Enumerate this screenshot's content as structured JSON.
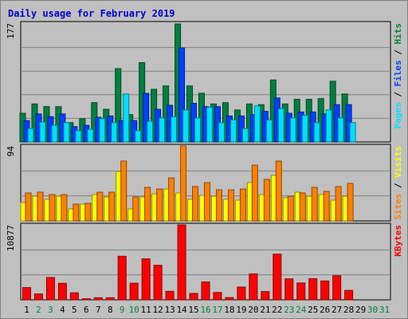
{
  "title": "Daily usage for February 2019",
  "chart_data": [
    {
      "type": "bar",
      "panel": "hits-files-pages",
      "ymax_label": "177",
      "ylim": [
        0,
        177
      ],
      "side_label": [
        "Pages",
        " / ",
        "Files",
        " / ",
        "Hits"
      ],
      "categories": [
        "1",
        "2",
        "3",
        "4",
        "5",
        "6",
        "7",
        "8",
        "9",
        "10",
        "11",
        "12",
        "13",
        "14",
        "15",
        "16",
        "17",
        "18",
        "19",
        "20",
        "21",
        "22",
        "23",
        "24",
        "25",
        "26",
        "27",
        "28",
        "29",
        "30",
        "31"
      ],
      "series": [
        {
          "name": "Hits",
          "color": "#008040",
          "values": [
            43,
            57,
            53,
            53,
            29,
            35,
            59,
            49,
            110,
            41,
            119,
            79,
            84,
            177,
            84,
            73,
            57,
            59,
            48,
            57,
            56,
            93,
            57,
            64,
            64,
            65,
            91,
            72,
            0,
            0,
            0
          ]
        },
        {
          "name": "Files",
          "color": "#0040ff",
          "values": [
            32,
            42,
            38,
            42,
            23,
            25,
            37,
            39,
            32,
            32,
            73,
            49,
            55,
            141,
            58,
            53,
            53,
            39,
            39,
            41,
            46,
            66,
            43,
            45,
            45,
            42,
            56,
            56,
            0,
            0,
            0
          ]
        },
        {
          "name": "Pages",
          "color": "#00e0ff",
          "values": [
            20,
            30,
            25,
            29,
            17,
            19,
            35,
            29,
            72,
            17,
            31,
            36,
            38,
            48,
            36,
            52,
            29,
            33,
            20,
            54,
            33,
            50,
            36,
            40,
            29,
            48,
            36,
            29,
            0,
            0,
            0
          ]
        }
      ]
    },
    {
      "type": "bar",
      "panel": "visits-sites",
      "ymax_label": "94",
      "ylim": [
        0,
        94
      ],
      "side_label": [
        "Sites",
        " / ",
        "Visits"
      ],
      "series": [
        {
          "name": "Visits",
          "color": "#ffff00",
          "values": [
            23,
            31,
            27,
            31,
            15,
            21,
            33,
            30,
            62,
            15,
            30,
            34,
            40,
            35,
            27,
            32,
            31,
            27,
            26,
            48,
            33,
            57,
            29,
            36,
            31,
            33,
            26,
            31,
            0,
            0,
            0
          ]
        },
        {
          "name": "Sites",
          "color": "#ff8000",
          "values": [
            35,
            36,
            33,
            33,
            21,
            22,
            36,
            36,
            75,
            30,
            42,
            40,
            54,
            94,
            43,
            48,
            39,
            39,
            40,
            70,
            52,
            75,
            31,
            35,
            42,
            37,
            43,
            47,
            0,
            0,
            0
          ]
        }
      ]
    },
    {
      "type": "bar",
      "panel": "kbytes",
      "ymax_label": "10877",
      "ylim": [
        0,
        10877
      ],
      "side_label": [
        "KBytes"
      ],
      "series": [
        {
          "name": "KBytes",
          "color": "#ff0000",
          "values": [
            1780,
            860,
            3250,
            2400,
            1020,
            155,
            310,
            310,
            6330,
            2420,
            5950,
            5010,
            1230,
            10877,
            930,
            2600,
            1070,
            330,
            1860,
            3770,
            1200,
            6630,
            3050,
            2450,
            3080,
            2740,
            3500,
            1370,
            0,
            0,
            0
          ]
        }
      ]
    }
  ],
  "x_labels": [
    {
      "label": "1",
      "weekend": false
    },
    {
      "label": "2",
      "weekend": true
    },
    {
      "label": "3",
      "weekend": true
    },
    {
      "label": "4",
      "weekend": false
    },
    {
      "label": "5",
      "weekend": false
    },
    {
      "label": "6",
      "weekend": false
    },
    {
      "label": "7",
      "weekend": false
    },
    {
      "label": "8",
      "weekend": false
    },
    {
      "label": "9",
      "weekend": true
    },
    {
      "label": "10",
      "weekend": true
    },
    {
      "label": "11",
      "weekend": false
    },
    {
      "label": "12",
      "weekend": false
    },
    {
      "label": "13",
      "weekend": false
    },
    {
      "label": "14",
      "weekend": false
    },
    {
      "label": "15",
      "weekend": false
    },
    {
      "label": "16",
      "weekend": true
    },
    {
      "label": "17",
      "weekend": true
    },
    {
      "label": "18",
      "weekend": false
    },
    {
      "label": "19",
      "weekend": false
    },
    {
      "label": "20",
      "weekend": false
    },
    {
      "label": "21",
      "weekend": false
    },
    {
      "label": "22",
      "weekend": false
    },
    {
      "label": "23",
      "weekend": true
    },
    {
      "label": "24",
      "weekend": true
    },
    {
      "label": "25",
      "weekend": false
    },
    {
      "label": "26",
      "weekend": false
    },
    {
      "label": "27",
      "weekend": false
    },
    {
      "label": "28",
      "weekend": false
    },
    {
      "label": "29",
      "weekend": false
    },
    {
      "label": "30",
      "weekend": true
    },
    {
      "label": "31",
      "weekend": true
    }
  ],
  "colors": {
    "title": "#0000cc",
    "plot_bg": "#c0c0c0",
    "grid": "#808080",
    "weekday_label": "#000000",
    "weekend_label": "#008040",
    "hits": "#008040",
    "files": "#0040ff",
    "pages": "#00e0ff",
    "visits": "#ffff00",
    "sites": "#ff8000",
    "kbytes": "#ff0000"
  }
}
